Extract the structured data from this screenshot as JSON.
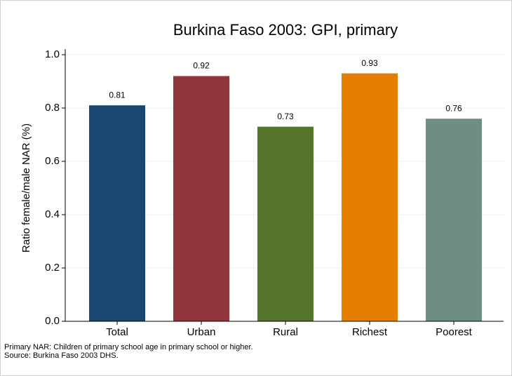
{
  "chart_data": {
    "type": "bar",
    "title": "Burkina Faso 2003: GPI, primary",
    "ylabel": "Ratio female/male NAR (%)",
    "categories": [
      "Total",
      "Urban",
      "Rural",
      "Richest",
      "Poorest"
    ],
    "values": [
      0.81,
      0.92,
      0.73,
      0.93,
      0.76
    ],
    "colors": [
      "#1a476f",
      "#90353b",
      "#55752f",
      "#e37e00",
      "#6e8e84"
    ],
    "ylim": [
      0,
      1.0
    ],
    "yticks": [
      {
        "value": 0,
        "label": "0.0"
      },
      0.2,
      0.4,
      0.6,
      0.8,
      {
        "value": 1.0,
        "label": "1.0"
      }
    ],
    "grid": true,
    "notes": [
      "Primary NAR: Children of primary school age in primary school or higher.",
      "Source: Burkina Faso 2003 DHS."
    ]
  }
}
